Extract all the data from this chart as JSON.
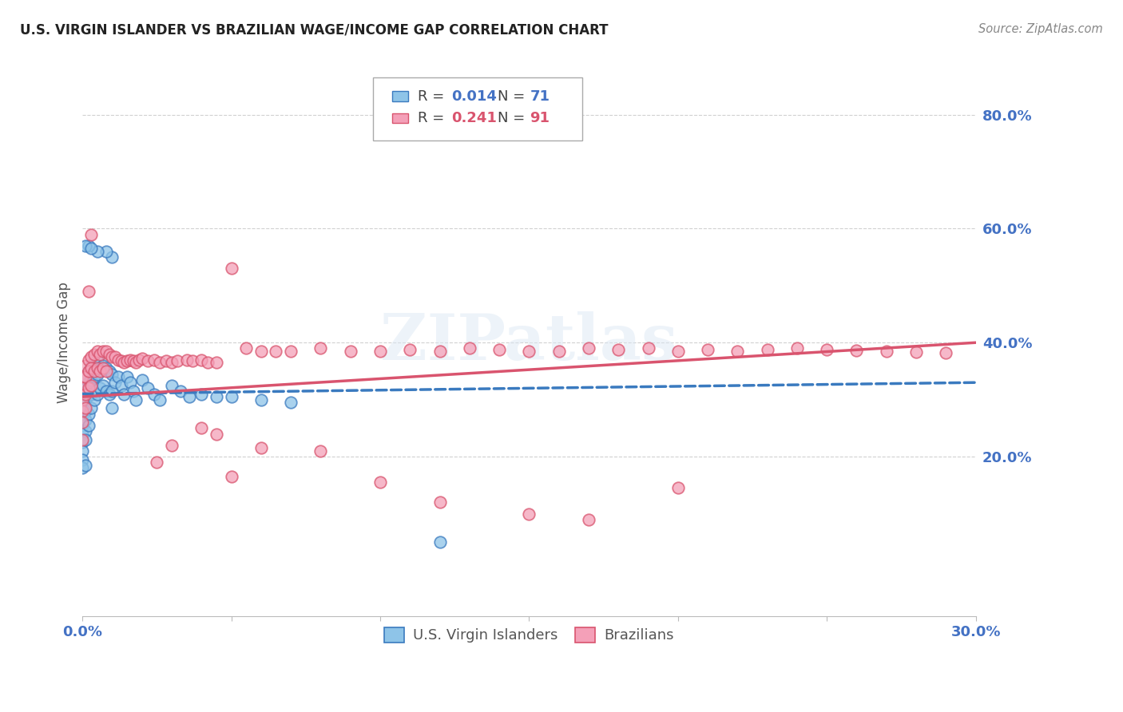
{
  "title": "U.S. VIRGIN ISLANDER VS BRAZILIAN WAGE/INCOME GAP CORRELATION CHART",
  "source": "Source: ZipAtlas.com",
  "ylabel": "Wage/Income Gap",
  "x_min": 0.0,
  "x_max": 0.3,
  "y_min": -0.08,
  "y_max": 0.88,
  "x_ticks": [
    0.0,
    0.05,
    0.1,
    0.15,
    0.2,
    0.25,
    0.3
  ],
  "x_tick_labels": [
    "0.0%",
    "",
    "",
    "",
    "",
    "",
    "30.0%"
  ],
  "y_ticks": [
    0.2,
    0.4,
    0.6,
    0.8
  ],
  "y_tick_labels": [
    "20.0%",
    "40.0%",
    "60.0%",
    "80.0%"
  ],
  "color_blue": "#8ec4e8",
  "color_pink": "#f4a0b8",
  "color_blue_line": "#3a7abf",
  "color_pink_line": "#d9546e",
  "color_axis_labels": "#4472C4",
  "color_grid": "#cccccc",
  "watermark": "ZIPatlas",
  "blue_scatter_x": [
    0.0,
    0.0,
    0.0,
    0.0,
    0.0,
    0.0,
    0.0,
    0.0,
    0.0,
    0.0,
    0.001,
    0.001,
    0.001,
    0.001,
    0.001,
    0.001,
    0.001,
    0.001,
    0.002,
    0.002,
    0.002,
    0.002,
    0.002,
    0.003,
    0.003,
    0.003,
    0.003,
    0.004,
    0.004,
    0.004,
    0.005,
    0.005,
    0.005,
    0.006,
    0.006,
    0.007,
    0.007,
    0.008,
    0.008,
    0.009,
    0.009,
    0.01,
    0.01,
    0.01,
    0.011,
    0.012,
    0.013,
    0.014,
    0.015,
    0.016,
    0.017,
    0.018,
    0.02,
    0.022,
    0.024,
    0.026,
    0.03,
    0.033,
    0.036,
    0.04,
    0.045,
    0.05,
    0.06,
    0.07,
    0.01,
    0.008,
    0.005,
    0.002,
    0.001,
    0.003,
    0.12
  ],
  "blue_scatter_y": [
    0.32,
    0.3,
    0.285,
    0.27,
    0.255,
    0.24,
    0.225,
    0.21,
    0.195,
    0.18,
    0.34,
    0.32,
    0.3,
    0.28,
    0.265,
    0.245,
    0.23,
    0.185,
    0.35,
    0.33,
    0.31,
    0.275,
    0.255,
    0.36,
    0.335,
    0.31,
    0.285,
    0.365,
    0.34,
    0.3,
    0.37,
    0.345,
    0.31,
    0.355,
    0.32,
    0.36,
    0.325,
    0.355,
    0.315,
    0.35,
    0.31,
    0.345,
    0.315,
    0.285,
    0.33,
    0.34,
    0.325,
    0.31,
    0.34,
    0.33,
    0.315,
    0.3,
    0.335,
    0.32,
    0.31,
    0.3,
    0.325,
    0.315,
    0.305,
    0.31,
    0.305,
    0.305,
    0.3,
    0.295,
    0.55,
    0.56,
    0.56,
    0.57,
    0.57,
    0.565,
    0.05
  ],
  "pink_scatter_x": [
    0.0,
    0.0,
    0.0,
    0.0,
    0.0,
    0.0,
    0.001,
    0.001,
    0.001,
    0.001,
    0.002,
    0.002,
    0.002,
    0.003,
    0.003,
    0.003,
    0.004,
    0.004,
    0.005,
    0.005,
    0.006,
    0.006,
    0.007,
    0.007,
    0.008,
    0.008,
    0.009,
    0.01,
    0.011,
    0.012,
    0.013,
    0.014,
    0.015,
    0.016,
    0.017,
    0.018,
    0.019,
    0.02,
    0.022,
    0.024,
    0.026,
    0.028,
    0.03,
    0.032,
    0.035,
    0.037,
    0.04,
    0.042,
    0.045,
    0.05,
    0.055,
    0.06,
    0.065,
    0.07,
    0.08,
    0.09,
    0.1,
    0.11,
    0.12,
    0.13,
    0.14,
    0.15,
    0.16,
    0.17,
    0.18,
    0.19,
    0.2,
    0.21,
    0.22,
    0.23,
    0.24,
    0.25,
    0.26,
    0.27,
    0.28,
    0.29,
    0.003,
    0.002,
    0.15,
    0.2,
    0.17,
    0.1,
    0.12,
    0.06,
    0.08,
    0.04,
    0.045,
    0.05,
    0.03,
    0.025
  ],
  "pink_scatter_y": [
    0.34,
    0.32,
    0.3,
    0.28,
    0.26,
    0.23,
    0.36,
    0.34,
    0.31,
    0.285,
    0.37,
    0.35,
    0.32,
    0.375,
    0.355,
    0.325,
    0.38,
    0.35,
    0.385,
    0.355,
    0.38,
    0.35,
    0.385,
    0.355,
    0.385,
    0.35,
    0.38,
    0.375,
    0.375,
    0.37,
    0.368,
    0.365,
    0.368,
    0.37,
    0.368,
    0.365,
    0.37,
    0.372,
    0.368,
    0.37,
    0.365,
    0.368,
    0.365,
    0.368,
    0.37,
    0.368,
    0.37,
    0.365,
    0.365,
    0.53,
    0.39,
    0.385,
    0.385,
    0.385,
    0.39,
    0.385,
    0.385,
    0.388,
    0.385,
    0.39,
    0.388,
    0.385,
    0.385,
    0.39,
    0.388,
    0.39,
    0.385,
    0.388,
    0.385,
    0.388,
    0.39,
    0.388,
    0.386,
    0.385,
    0.383,
    0.382,
    0.59,
    0.49,
    0.1,
    0.145,
    0.09,
    0.155,
    0.12,
    0.215,
    0.21,
    0.25,
    0.24,
    0.165,
    0.22,
    0.19
  ],
  "blue_trend_x": [
    0.0,
    0.3
  ],
  "blue_trend_y": [
    0.31,
    0.33
  ],
  "pink_trend_x": [
    0.0,
    0.3
  ],
  "pink_trend_y": [
    0.305,
    0.4
  ]
}
